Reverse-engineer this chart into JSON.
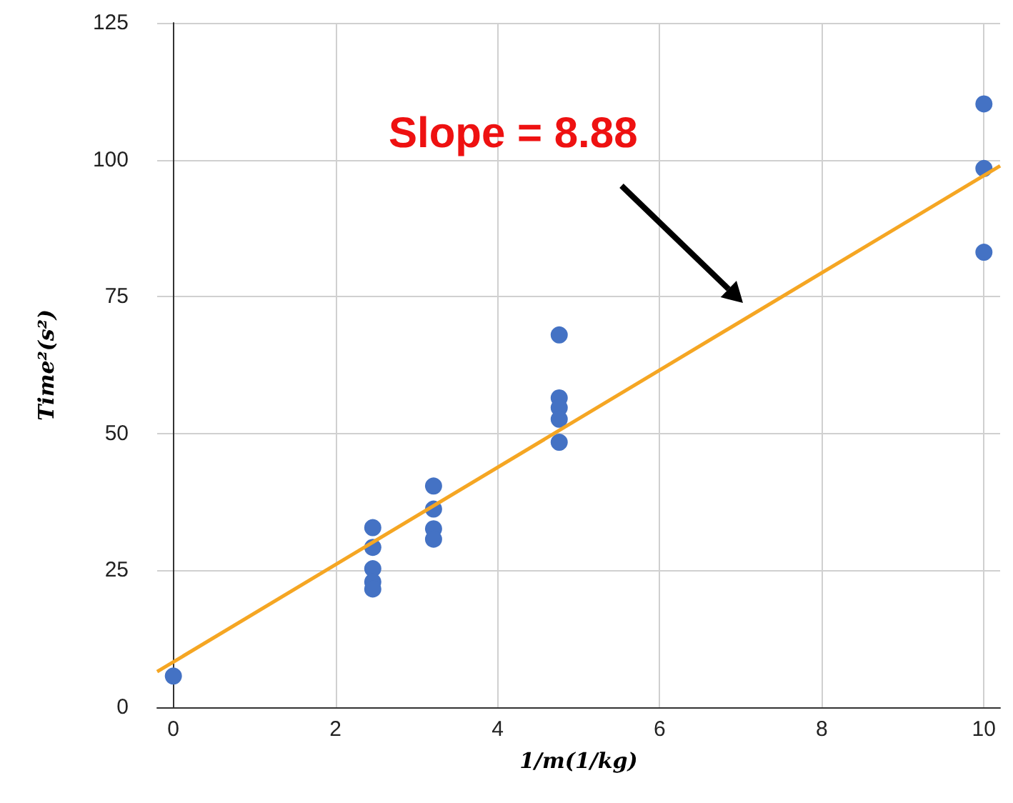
{
  "chart_data": {
    "type": "scatter",
    "xlabel": "1/m(1/kg)",
    "ylabel": "Time²(s²)",
    "xlim": [
      -0.2,
      10.2
    ],
    "xticks": [
      0,
      2,
      4,
      6,
      8,
      10
    ],
    "ylim": [
      0,
      125
    ],
    "yticks": [
      0,
      25,
      50,
      75,
      100,
      125
    ],
    "grid": true,
    "marker": "circle",
    "series": [
      {
        "color": "#4472c4",
        "x": [
          0,
          2.46,
          2.46,
          2.46,
          2.46,
          2.46,
          3.21,
          3.21,
          3.21,
          3.21,
          4.76,
          4.76,
          4.76,
          4.76,
          4.76,
          10,
          10,
          10
        ],
        "values": [
          5.7,
          32.8,
          29.2,
          25.3,
          22.9,
          21.6,
          40.4,
          36.2,
          32.6,
          30.7,
          68,
          56.5,
          54.7,
          52.6,
          48.4,
          110.2,
          98.4,
          83.1
        ]
      },
      {
        "type": "line",
        "color": "#f5a623",
        "x": [
          -0.2,
          10.2
        ],
        "values": [
          6.5,
          98.9
        ],
        "marker": "none",
        "line_style": "solid"
      }
    ],
    "annotations": [
      "Slope = 8.88"
    ]
  }
}
